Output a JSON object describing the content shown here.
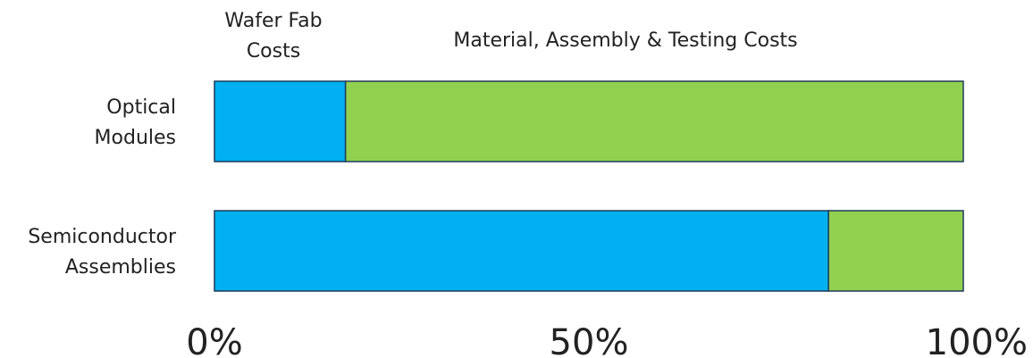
{
  "chart_data": {
    "type": "bar",
    "orientation": "horizontal",
    "stacked": "percent",
    "categories": [
      "Optical\nModules",
      "Semiconductor\nAssemblies"
    ],
    "series": [
      {
        "name": "Wafer Fab\nCosts",
        "color": "#00b0f0",
        "values": [
          17.5,
          82
        ]
      },
      {
        "name": "Material, Assembly & Testing Costs",
        "color": "#92d050",
        "values": [
          82.5,
          18
        ]
      }
    ],
    "x_ticks": [
      "0%",
      "50%",
      "100%"
    ],
    "xlim": [
      0,
      100
    ],
    "grid": false,
    "legend": "top"
  }
}
